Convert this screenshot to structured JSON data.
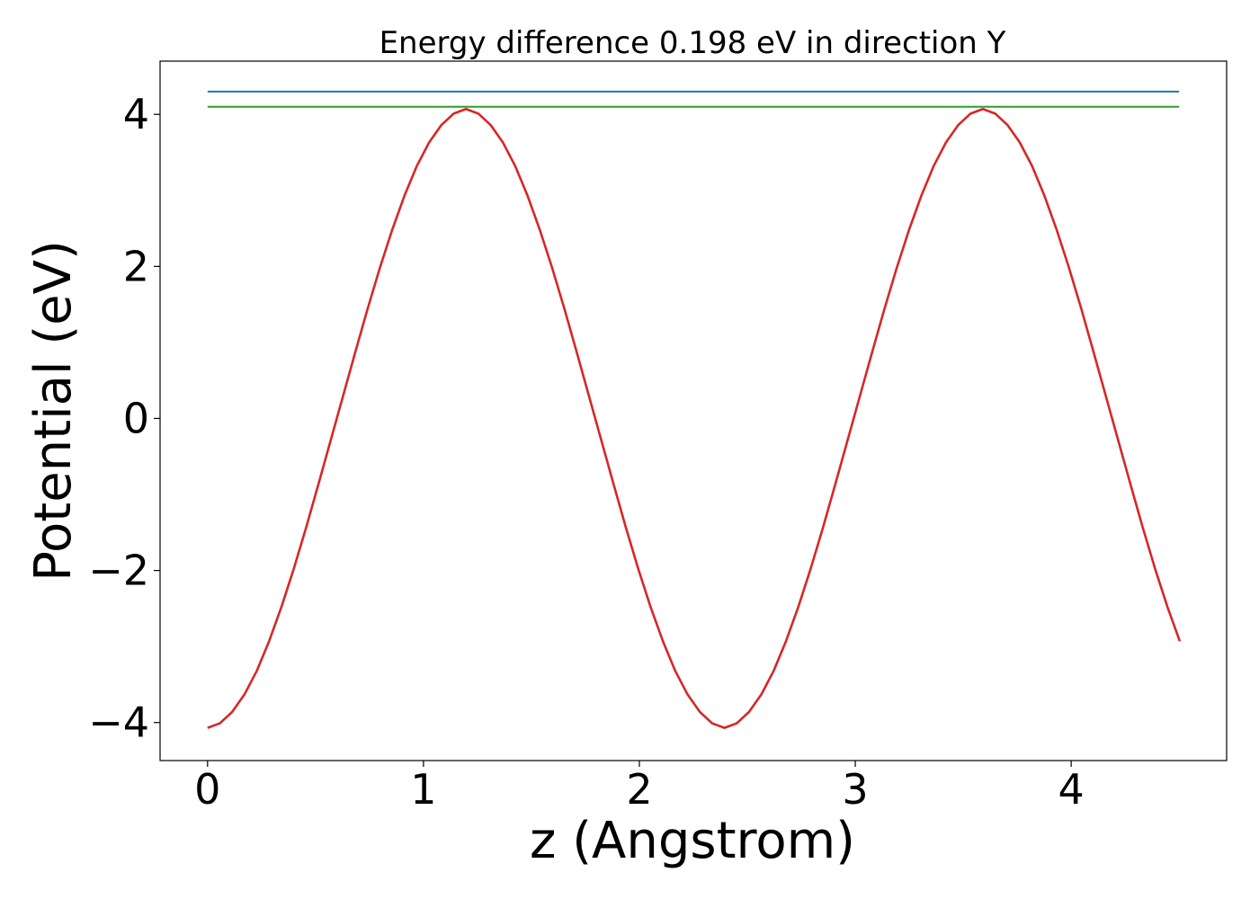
{
  "chart_data": {
    "type": "line",
    "title": "Energy difference 0.198 eV in direction Y",
    "xlabel": "z (Angstrom)",
    "ylabel": "Potential (eV)",
    "xlim": [
      -0.22,
      4.72
    ],
    "ylim": [
      -4.5,
      4.7
    ],
    "xticks": [
      0,
      1,
      2,
      3,
      4
    ],
    "xtick_labels": [
      "0",
      "1",
      "2",
      "3",
      "4"
    ],
    "yticks": [
      -4,
      -2,
      0,
      2,
      4
    ],
    "ytick_labels": [
      "−4",
      "−2",
      "0",
      "2",
      "4"
    ],
    "grid": false,
    "series": [
      {
        "kind": "curve",
        "color": "#d62728",
        "x": [
          0.0,
          0.057,
          0.114,
          0.171,
          0.228,
          0.285,
          0.342,
          0.399,
          0.456,
          0.513,
          0.57,
          0.627,
          0.684,
          0.741,
          0.798,
          0.855,
          0.912,
          0.969,
          1.026,
          1.083,
          1.14,
          1.197,
          1.254,
          1.311,
          1.368,
          1.425,
          1.482,
          1.539,
          1.596,
          1.653,
          1.71,
          1.767,
          1.824,
          1.881,
          1.938,
          1.995,
          2.052,
          2.109,
          2.166,
          2.223,
          2.28,
          2.337,
          2.394,
          2.451,
          2.508,
          2.565,
          2.622,
          2.679,
          2.736,
          2.793,
          2.85,
          2.907,
          2.964,
          3.021,
          3.078,
          3.135,
          3.192,
          3.249,
          3.306,
          3.363,
          3.42,
          3.477,
          3.534,
          3.591,
          3.648,
          3.705,
          3.762,
          3.819,
          3.876,
          3.933,
          3.99,
          4.047,
          4.104,
          4.161,
          4.218,
          4.275,
          4.332,
          4.389,
          4.446,
          4.503
        ],
        "y": [
          -4.07,
          -4.01,
          -3.86,
          -3.63,
          -3.32,
          -2.93,
          -2.48,
          -1.98,
          -1.44,
          -0.87,
          -0.29,
          0.29,
          0.87,
          1.44,
          1.98,
          2.48,
          2.93,
          3.32,
          3.63,
          3.86,
          4.01,
          4.07,
          4.01,
          3.86,
          3.63,
          3.32,
          2.93,
          2.48,
          1.98,
          1.44,
          0.87,
          0.29,
          -0.29,
          -0.87,
          -1.44,
          -1.98,
          -2.48,
          -2.93,
          -3.32,
          -3.63,
          -3.86,
          -4.01,
          -4.07,
          -4.01,
          -3.86,
          -3.63,
          -3.32,
          -2.93,
          -2.48,
          -1.98,
          -1.44,
          -0.87,
          -0.29,
          0.29,
          0.87,
          1.44,
          1.98,
          2.48,
          2.93,
          3.32,
          3.63,
          3.86,
          4.01,
          4.07,
          4.01,
          3.86,
          3.63,
          3.32,
          2.93,
          2.48,
          1.98,
          1.44,
          0.87,
          0.29,
          -0.29,
          -0.87,
          -1.44,
          -1.98,
          -2.48,
          -2.93
        ]
      },
      {
        "kind": "hline",
        "color": "#1f77b4",
        "x": [
          0.0,
          4.5
        ],
        "y": [
          4.3,
          4.3
        ]
      },
      {
        "kind": "hline",
        "color": "#2ca02c",
        "x": [
          0.0,
          4.5
        ],
        "y": [
          4.1,
          4.1
        ]
      }
    ]
  }
}
